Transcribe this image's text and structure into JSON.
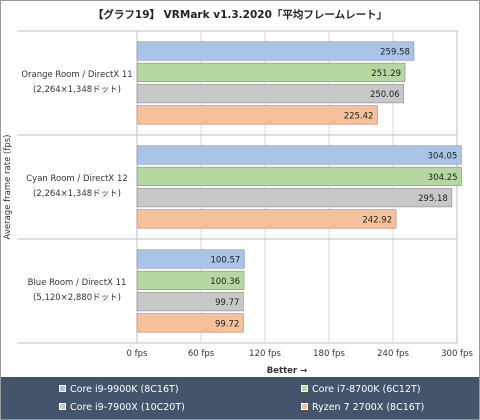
{
  "chart_data": {
    "type": "bar",
    "orientation": "horizontal",
    "title": "【グラフ19】 VRMark v1.3.2020「平均フレームレート」",
    "ylabel": "Average frame rate (fps)",
    "xlabel": "Better →",
    "xlim": [
      0,
      300
    ],
    "xticks": [
      "0 fps",
      "60 fps",
      "120 fps",
      "180 fps",
      "240 fps",
      "300 fps"
    ],
    "grid": true,
    "legend_position": "bottom",
    "categories": [
      {
        "line1": "Orange Room / DirectX 11",
        "line2": "(2,264×1,348ドット)"
      },
      {
        "line1": "Cyan Room / DirectX 12",
        "line2": "(2,264×1,348ドット)"
      },
      {
        "line1": "Blue Room / DirectX 11",
        "line2": "(5,120×2,880ドット)"
      }
    ],
    "series": [
      {
        "name": "Core i9-9900K (8C16T)",
        "color": "#a9c4e7",
        "values": [
          259.58,
          304.05,
          100.57
        ]
      },
      {
        "name": "Core i7-8700K (6C12T)",
        "color": "#b5d7a0",
        "values": [
          251.29,
          304.25,
          100.36
        ]
      },
      {
        "name": "Core i9-7900X (10C20T)",
        "color": "#c8c8c8",
        "values": [
          250.06,
          295.18,
          99.77
        ]
      },
      {
        "name": "Ryzen 7 2700X (8C16T)",
        "color": "#f8c09a",
        "values": [
          225.42,
          242.92,
          99.72
        ]
      }
    ]
  }
}
